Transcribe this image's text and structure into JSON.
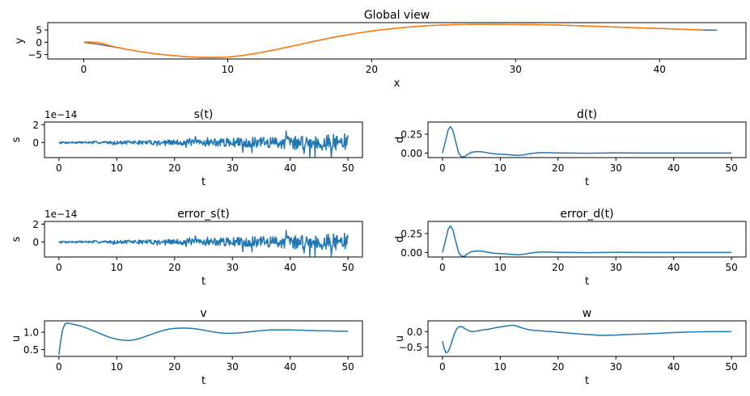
{
  "colors": {
    "blue": "#1f77b4",
    "orange": "#ff7f0e",
    "gray": "#6b6b6b"
  },
  "chart_data": [
    {
      "id": "global",
      "type": "line",
      "title": "Global view",
      "xlabel": "x",
      "ylabel": "y",
      "xlim": [
        -2.5,
        46
      ],
      "ylim": [
        -6.8,
        8.0
      ],
      "xticks": [
        0,
        10,
        20,
        30,
        40
      ],
      "yticks": [
        -5,
        0,
        5
      ],
      "xtick_labels": [
        "0",
        "10",
        "20",
        "30",
        "40"
      ],
      "ytick_labels": [
        "−5",
        "0",
        "5"
      ],
      "offset": "",
      "series": [
        {
          "color": "gray",
          "width": 1.5,
          "x": [
            0,
            1,
            2,
            3,
            4,
            5,
            6,
            7,
            8,
            9,
            10,
            11,
            12,
            13,
            14,
            15,
            16,
            17,
            18,
            19,
            20,
            21,
            22,
            23,
            24,
            25,
            26,
            27,
            28,
            29,
            30,
            31,
            32,
            33,
            34,
            35,
            36,
            37,
            38,
            39,
            40,
            41,
            42,
            43
          ],
          "y": [
            0.0,
            -0.8,
            -1.8,
            -2.9,
            -3.9,
            -4.7,
            -5.3,
            -5.8,
            -6.1,
            -6.2,
            -6.0,
            -5.4,
            -4.5,
            -3.4,
            -2.2,
            -0.9,
            0.4,
            1.6,
            2.7,
            3.7,
            4.6,
            5.3,
            5.9,
            6.4,
            6.8,
            7.0,
            7.2,
            7.3,
            7.3,
            7.3,
            7.2,
            7.2,
            7.1,
            7.0,
            6.8,
            6.6,
            6.4,
            6.2,
            6.0,
            5.8,
            5.6,
            5.4,
            5.2,
            5.0
          ]
        },
        {
          "color": "blue",
          "width": 1.5,
          "x": [
            43.0,
            43.5,
            44.0
          ],
          "y": [
            5.0,
            4.95,
            4.9
          ]
        },
        {
          "color": "orange",
          "width": 1.5,
          "x": [
            0,
            0.5,
            1,
            1.5,
            2,
            3,
            4,
            5,
            6,
            7,
            8,
            9,
            10,
            11,
            12,
            13,
            14,
            15,
            16,
            17,
            18,
            19,
            20,
            21,
            22,
            23,
            24,
            25,
            26,
            27,
            28,
            29,
            30,
            31,
            32,
            33,
            34,
            35,
            36,
            37,
            38,
            39,
            40,
            41,
            42,
            43
          ],
          "y": [
            0.1,
            0.15,
            -0.1,
            -0.8,
            -1.6,
            -2.9,
            -3.9,
            -4.7,
            -5.3,
            -5.8,
            -6.1,
            -6.2,
            -6.0,
            -5.4,
            -4.5,
            -3.4,
            -2.2,
            -0.9,
            0.4,
            1.6,
            2.7,
            3.7,
            4.6,
            5.3,
            5.9,
            6.4,
            6.8,
            7.0,
            7.2,
            7.3,
            7.3,
            7.3,
            7.2,
            7.2,
            7.1,
            7.0,
            6.8,
            6.6,
            6.4,
            6.2,
            6.0,
            5.8,
            5.6,
            5.4,
            5.2,
            5.0
          ]
        }
      ]
    },
    {
      "id": "s",
      "type": "line",
      "title": "s(t)",
      "xlabel": "t",
      "ylabel": "s",
      "xlim": [
        -2.5,
        52.5
      ],
      "ylim": [
        -1.7,
        2.3
      ],
      "xticks": [
        0,
        10,
        20,
        30,
        40,
        50
      ],
      "yticks": [
        0,
        2
      ],
      "xtick_labels": [
        "0",
        "10",
        "20",
        "30",
        "40",
        "50"
      ],
      "ytick_labels": [
        "0",
        "2"
      ],
      "offset": "1e−14",
      "series": [
        {
          "color": "blue",
          "width": 1.5,
          "noise": {
            "t_end": 50,
            "n": 500,
            "base": 0.1,
            "gain": 0.9,
            "power": 1.6,
            "seed": 7
          }
        }
      ]
    },
    {
      "id": "d",
      "type": "line",
      "title": "d(t)",
      "xlabel": "t",
      "ylabel": "d",
      "xlim": [
        -2.5,
        52.5
      ],
      "ylim": [
        -0.06,
        0.41
      ],
      "xticks": [
        0,
        10,
        20,
        30,
        40,
        50
      ],
      "yticks": [
        0,
        0.25
      ],
      "xtick_labels": [
        "0",
        "10",
        "20",
        "30",
        "40",
        "50"
      ],
      "ytick_labels": [
        "0.00",
        "0.25"
      ],
      "offset": "",
      "series": [
        {
          "color": "blue",
          "width": 1.5,
          "x": [
            0,
            0.5,
            1.0,
            1.4,
            1.8,
            2.3,
            2.8,
            3.3,
            3.8,
            4.3,
            5,
            6,
            7,
            8,
            9,
            10,
            11,
            12,
            13,
            14,
            15,
            16,
            17,
            18,
            20,
            22,
            25,
            28,
            30,
            32,
            35,
            40,
            45,
            50
          ],
          "y": [
            0.0,
            0.15,
            0.31,
            0.35,
            0.3,
            0.15,
            0.0,
            -0.05,
            -0.05,
            -0.02,
            0.01,
            0.02,
            0.015,
            0.0,
            -0.01,
            -0.015,
            -0.02,
            -0.025,
            -0.03,
            -0.025,
            -0.01,
            0.0,
            0.005,
            0.005,
            0.002,
            0.0,
            -0.002,
            0.0,
            0.003,
            0.002,
            0.0,
            0.0,
            0.0,
            0.0
          ]
        }
      ]
    },
    {
      "id": "error_s",
      "type": "line",
      "title": "error_s(t)",
      "xlabel": "t",
      "ylabel": "s",
      "xlim": [
        -2.5,
        52.5
      ],
      "ylim": [
        -1.7,
        2.3
      ],
      "xticks": [
        0,
        10,
        20,
        30,
        40,
        50
      ],
      "yticks": [
        0,
        2
      ],
      "xtick_labels": [
        "0",
        "10",
        "20",
        "30",
        "40",
        "50"
      ],
      "ytick_labels": [
        "0",
        "2"
      ],
      "offset": "1e−14",
      "series": [
        {
          "color": "blue",
          "width": 1.5,
          "noise": {
            "t_end": 50,
            "n": 500,
            "base": 0.1,
            "gain": 0.9,
            "power": 1.6,
            "seed": 7
          }
        }
      ]
    },
    {
      "id": "error_d",
      "type": "line",
      "title": "error_d(t)",
      "xlabel": "t",
      "ylabel": "d",
      "xlim": [
        -2.5,
        52.5
      ],
      "ylim": [
        -0.06,
        0.41
      ],
      "xticks": [
        0,
        10,
        20,
        30,
        40,
        50
      ],
      "yticks": [
        0,
        0.25
      ],
      "xtick_labels": [
        "0",
        "10",
        "20",
        "30",
        "40",
        "50"
      ],
      "ytick_labels": [
        "0.00",
        "0.25"
      ],
      "offset": "",
      "series": [
        {
          "color": "blue",
          "width": 1.5,
          "x": [
            0,
            0.5,
            1.0,
            1.4,
            1.8,
            2.3,
            2.8,
            3.3,
            3.8,
            4.3,
            5,
            6,
            7,
            8,
            9,
            10,
            11,
            12,
            13,
            14,
            15,
            16,
            17,
            18,
            20,
            22,
            25,
            28,
            30,
            32,
            35,
            40,
            45,
            50
          ],
          "y": [
            0.0,
            0.15,
            0.31,
            0.35,
            0.3,
            0.15,
            0.0,
            -0.05,
            -0.05,
            -0.02,
            0.01,
            0.02,
            0.015,
            0.0,
            -0.01,
            -0.015,
            -0.02,
            -0.025,
            -0.03,
            -0.025,
            -0.01,
            0.0,
            0.005,
            0.005,
            0.002,
            0.0,
            -0.002,
            0.0,
            0.003,
            0.002,
            0.0,
            0.0,
            0.0,
            0.0
          ]
        }
      ]
    },
    {
      "id": "v",
      "type": "line",
      "title": "v",
      "xlabel": "t",
      "ylabel": "u",
      "xlim": [
        -2.5,
        52.5
      ],
      "ylim": [
        0.3,
        1.33
      ],
      "xticks": [
        0,
        10,
        20,
        30,
        40,
        50
      ],
      "yticks": [
        0.5,
        1.0
      ],
      "xtick_labels": [
        "0",
        "10",
        "20",
        "30",
        "40",
        "50"
      ],
      "ytick_labels": [
        "0.5",
        "1.0"
      ],
      "offset": "",
      "series": [
        {
          "color": "blue",
          "width": 1.5,
          "x": [
            0,
            0.1,
            0.3,
            0.6,
            1.0,
            1.5,
            2,
            3,
            4,
            5,
            6,
            7,
            8,
            9,
            10,
            11,
            12,
            13,
            14,
            15,
            16,
            17,
            18,
            19,
            20,
            21,
            22,
            23,
            24,
            25,
            26,
            27,
            28,
            29,
            30,
            31,
            32,
            33,
            34,
            35,
            36,
            37,
            38,
            39,
            40,
            41,
            42,
            43,
            44,
            45,
            46,
            47,
            48,
            49,
            50
          ],
          "y": [
            0.35,
            0.5,
            0.75,
            1.05,
            1.23,
            1.27,
            1.25,
            1.21,
            1.17,
            1.11,
            1.04,
            0.97,
            0.9,
            0.84,
            0.8,
            0.77,
            0.76,
            0.78,
            0.82,
            0.88,
            0.94,
            1.0,
            1.05,
            1.09,
            1.11,
            1.12,
            1.12,
            1.11,
            1.09,
            1.06,
            1.03,
            1.0,
            0.98,
            0.97,
            0.97,
            0.98,
            0.99,
            1.01,
            1.03,
            1.05,
            1.06,
            1.07,
            1.07,
            1.07,
            1.07,
            1.06,
            1.06,
            1.05,
            1.05,
            1.04,
            1.04,
            1.04,
            1.03,
            1.03,
            1.03
          ]
        }
      ]
    },
    {
      "id": "w",
      "type": "line",
      "title": "w",
      "xlabel": "t",
      "ylabel": "u",
      "xlim": [
        -2.5,
        52.5
      ],
      "ylim": [
        -0.8,
        0.35
      ],
      "xticks": [
        0,
        10,
        20,
        30,
        40,
        50
      ],
      "yticks": [
        -0.5,
        0.0
      ],
      "xtick_labels": [
        "0",
        "10",
        "20",
        "30",
        "40",
        "50"
      ],
      "ytick_labels": [
        "−0.5",
        "0.0"
      ],
      "offset": "",
      "series": [
        {
          "color": "blue",
          "width": 1.5,
          "x": [
            0,
            0.3,
            0.6,
            1.0,
            1.5,
            2.0,
            2.5,
            3.0,
            3.5,
            4,
            5,
            6,
            7,
            8,
            9,
            10,
            11,
            12,
            12.5,
            13,
            14,
            15,
            16,
            17,
            18,
            19,
            20,
            22,
            24,
            26,
            27,
            28,
            30,
            32,
            35,
            38,
            40,
            43,
            46,
            50
          ],
          "y": [
            -0.3,
            -0.55,
            -0.68,
            -0.65,
            -0.4,
            -0.1,
            0.1,
            0.17,
            0.15,
            0.08,
            0.0,
            0.02,
            0.06,
            0.08,
            0.12,
            0.15,
            0.18,
            0.21,
            0.2,
            0.17,
            0.11,
            0.06,
            0.04,
            0.03,
            0.01,
            0.0,
            -0.02,
            -0.05,
            -0.08,
            -0.1,
            -0.12,
            -0.12,
            -0.11,
            -0.09,
            -0.07,
            -0.05,
            -0.03,
            -0.01,
            0.0,
            0.0
          ]
        }
      ]
    }
  ]
}
